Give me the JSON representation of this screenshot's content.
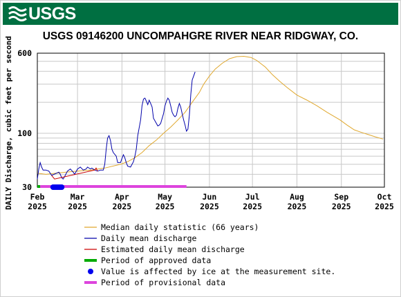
{
  "header": {
    "logo_text": "USGS",
    "logo_icon": "usgs-wave-icon",
    "banner_color": "#006f41"
  },
  "chart_data": {
    "type": "line",
    "title": "USGS 09146200 UNCOMPAHGRE RIVER NEAR RIDGWAY, CO.",
    "ylabel": "DAILY Discharge, cubic feet per second",
    "xlabel": "",
    "y_scale": "log",
    "ylim": [
      30,
      600
    ],
    "y_ticks": [
      "600",
      "100",
      "30"
    ],
    "x_ticks": [
      {
        "label": [
          "Feb",
          "2025"
        ],
        "date": "2025-02-01"
      },
      {
        "label": [
          "Mar",
          "2025"
        ],
        "date": "2025-03-01"
      },
      {
        "label": [
          "Apr",
          "2025"
        ],
        "date": "2025-04-01"
      },
      {
        "label": [
          "May",
          "2025"
        ],
        "date": "2025-05-01"
      },
      {
        "label": [
          "Jun",
          "2025"
        ],
        "date": "2025-06-01"
      },
      {
        "label": [
          "Jul",
          "2025"
        ],
        "date": "2025-07-01"
      },
      {
        "label": [
          "Aug",
          "2025"
        ],
        "date": "2025-08-01"
      },
      {
        "label": [
          "Sep",
          "2025"
        ],
        "date": "2025-09-01"
      },
      {
        "label": [
          "Oct",
          "2025"
        ],
        "date": "2025-10-01"
      }
    ],
    "xlim": [
      "2025-02-01",
      "2025-10-01"
    ],
    "grid": true,
    "series": [
      {
        "name": "Median daily statistic (66 years)",
        "color": "#e0a82e",
        "points": [
          [
            "2025-02-01",
            41
          ],
          [
            "2025-02-07",
            40
          ],
          [
            "2025-02-14",
            41
          ],
          [
            "2025-02-21",
            42
          ],
          [
            "2025-03-01",
            43
          ],
          [
            "2025-03-10",
            44
          ],
          [
            "2025-03-20",
            46
          ],
          [
            "2025-03-31",
            50
          ],
          [
            "2025-04-05",
            53
          ],
          [
            "2025-04-10",
            58
          ],
          [
            "2025-04-15",
            65
          ],
          [
            "2025-04-20",
            76
          ],
          [
            "2025-04-25",
            86
          ],
          [
            "2025-04-30",
            100
          ],
          [
            "2025-05-05",
            115
          ],
          [
            "2025-05-10",
            135
          ],
          [
            "2025-05-15",
            160
          ],
          [
            "2025-05-20",
            200
          ],
          [
            "2025-05-25",
            250
          ],
          [
            "2025-05-28",
            300
          ],
          [
            "2025-06-01",
            360
          ],
          [
            "2025-06-05",
            420
          ],
          [
            "2025-06-10",
            480
          ],
          [
            "2025-06-15",
            530
          ],
          [
            "2025-06-20",
            555
          ],
          [
            "2025-06-25",
            560
          ],
          [
            "2025-06-30",
            545
          ],
          [
            "2025-07-04",
            510
          ],
          [
            "2025-07-10",
            440
          ],
          [
            "2025-07-15",
            370
          ],
          [
            "2025-07-20",
            320
          ],
          [
            "2025-07-25",
            280
          ],
          [
            "2025-08-01",
            235
          ],
          [
            "2025-08-08",
            210
          ],
          [
            "2025-08-15",
            185
          ],
          [
            "2025-08-22",
            160
          ],
          [
            "2025-08-31",
            135
          ],
          [
            "2025-09-05",
            120
          ],
          [
            "2025-09-10",
            108
          ],
          [
            "2025-09-15",
            102
          ],
          [
            "2025-09-20",
            97
          ],
          [
            "2025-09-25",
            92
          ],
          [
            "2025-09-30",
            88
          ]
        ]
      },
      {
        "name": "Daily mean discharge",
        "color": "#0000aa",
        "points": [
          [
            "2025-02-01",
            36
          ],
          [
            "2025-02-02",
            45
          ],
          [
            "2025-02-03",
            52
          ],
          [
            "2025-02-04",
            47
          ],
          [
            "2025-02-05",
            44
          ],
          [
            "2025-02-07",
            44
          ],
          [
            "2025-02-09",
            43
          ],
          [
            "2025-02-11",
            39
          ],
          [
            "2025-02-16",
            42
          ],
          [
            "2025-02-17",
            40
          ],
          [
            "2025-02-18",
            37
          ],
          [
            "2025-02-19",
            36
          ],
          [
            "2025-02-20",
            38
          ],
          [
            "2025-02-22",
            43
          ],
          [
            "2025-02-24",
            45
          ],
          [
            "2025-02-26",
            42
          ],
          [
            "2025-02-27",
            40
          ],
          [
            "2025-03-01",
            45
          ],
          [
            "2025-03-03",
            47
          ],
          [
            "2025-03-05",
            44
          ],
          [
            "2025-03-07",
            45
          ],
          [
            "2025-03-08",
            47
          ],
          [
            "2025-03-10",
            45
          ],
          [
            "2025-03-11",
            46
          ],
          [
            "2025-03-13",
            44
          ],
          [
            "2025-03-15",
            43
          ],
          [
            "2025-03-17",
            44
          ],
          [
            "2025-03-19",
            44
          ],
          [
            "2025-03-20",
            50
          ],
          [
            "2025-03-21",
            70
          ],
          [
            "2025-03-22",
            90
          ],
          [
            "2025-03-23",
            95
          ],
          [
            "2025-03-24",
            85
          ],
          [
            "2025-03-25",
            70
          ],
          [
            "2025-03-26",
            65
          ],
          [
            "2025-03-28",
            60
          ],
          [
            "2025-03-29",
            52
          ],
          [
            "2025-03-31",
            52
          ],
          [
            "2025-04-01",
            57
          ],
          [
            "2025-04-02",
            62
          ],
          [
            "2025-04-03",
            58
          ],
          [
            "2025-04-04",
            52
          ],
          [
            "2025-04-05",
            48
          ],
          [
            "2025-04-07",
            47
          ],
          [
            "2025-04-09",
            53
          ],
          [
            "2025-04-10",
            60
          ],
          [
            "2025-04-11",
            70
          ],
          [
            "2025-04-12",
            95
          ],
          [
            "2025-04-14",
            135
          ],
          [
            "2025-04-15",
            185
          ],
          [
            "2025-04-16",
            215
          ],
          [
            "2025-04-17",
            220
          ],
          [
            "2025-04-18",
            205
          ],
          [
            "2025-04-19",
            190
          ],
          [
            "2025-04-20",
            210
          ],
          [
            "2025-04-21",
            195
          ],
          [
            "2025-04-22",
            180
          ],
          [
            "2025-04-23",
            140
          ],
          [
            "2025-04-25",
            125
          ],
          [
            "2025-04-26",
            118
          ],
          [
            "2025-04-27",
            120
          ],
          [
            "2025-04-28",
            125
          ],
          [
            "2025-04-30",
            155
          ],
          [
            "2025-05-01",
            185
          ],
          [
            "2025-05-02",
            205
          ],
          [
            "2025-05-03",
            220
          ],
          [
            "2025-05-04",
            210
          ],
          [
            "2025-05-05",
            185
          ],
          [
            "2025-05-06",
            160
          ],
          [
            "2025-05-07",
            150
          ],
          [
            "2025-05-08",
            145
          ],
          [
            "2025-05-09",
            150
          ],
          [
            "2025-05-10",
            175
          ],
          [
            "2025-05-11",
            195
          ],
          [
            "2025-05-12",
            180
          ],
          [
            "2025-05-13",
            155
          ],
          [
            "2025-05-14",
            135
          ],
          [
            "2025-05-15",
            120
          ],
          [
            "2025-05-16",
            105
          ],
          [
            "2025-05-17",
            110
          ],
          [
            "2025-05-18",
            150
          ],
          [
            "2025-05-19",
            240
          ],
          [
            "2025-05-20",
            330
          ],
          [
            "2025-05-21",
            360
          ],
          [
            "2025-05-22",
            395
          ]
        ]
      },
      {
        "name": "Estimated daily mean discharge",
        "color": "#cc0000",
        "points": [
          [
            "2025-02-11",
            39
          ],
          [
            "2025-02-13",
            36
          ],
          [
            "2025-03-13",
            44
          ],
          [
            "2025-03-14",
            46
          ],
          [
            "2025-03-15",
            43
          ]
        ]
      }
    ],
    "periods": [
      {
        "name": "Period of approved data",
        "color": "#00aa00",
        "from": "2025-02-01",
        "to": "2025-02-03"
      },
      {
        "name": "Period of provisional data",
        "color": "#dd44dd",
        "from": "2025-02-03",
        "to": "2025-05-16"
      }
    ],
    "ice": {
      "name": "Value is affected by ice at the measurement site.",
      "color": "#0000ee",
      "dates": [
        "2025-02-12",
        "2025-02-13",
        "2025-02-14",
        "2025-02-15",
        "2025-02-16",
        "2025-02-17",
        "2025-02-18"
      ]
    }
  },
  "legend": [
    {
      "label": "Median daily statistic (66 years)",
      "kind": "line",
      "color": "#e0a82e"
    },
    {
      "label": "Daily mean discharge",
      "kind": "line",
      "color": "#0000aa"
    },
    {
      "label": "Estimated daily mean discharge",
      "kind": "line",
      "color": "#cc0000"
    },
    {
      "label": "Period of approved data",
      "kind": "bar",
      "color": "#00aa00"
    },
    {
      "label": "Value is affected by ice at the measurement site.",
      "kind": "dot",
      "color": "#0000ee"
    },
    {
      "label": "Period of provisional data",
      "kind": "bar",
      "color": "#dd44dd"
    }
  ]
}
